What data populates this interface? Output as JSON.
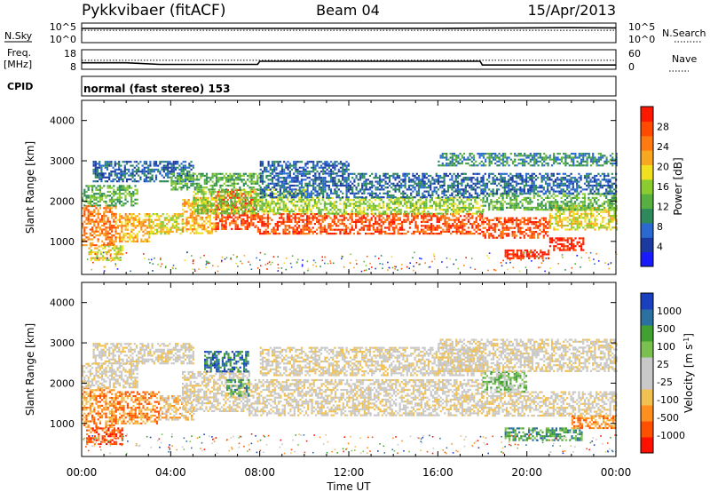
{
  "header": {
    "station": "Pykkvibaer (fitACF)",
    "beam": "Beam 04",
    "date": "15/Apr/2013"
  },
  "colors": {
    "power_scale": [
      "#1a1aff",
      "#1a3aa0",
      "#2a6ad0",
      "#2e8a5a",
      "#58b040",
      "#8acc30",
      "#f0e020",
      "#f8a820",
      "#ff7a10",
      "#ff4a00",
      "#ff1800"
    ],
    "velocity_scale": [
      "#ff1000",
      "#ff5000",
      "#ff9020",
      "#f0c050",
      "#c8c8c8",
      "#c8c8c8",
      "#7ac050",
      "#40a030",
      "#2a70a0",
      "#1a40c0"
    ]
  },
  "chart_data": [
    {
      "type": "line",
      "name": "noise-sky-panel",
      "ylabel": "N.Sky",
      "right_label": "N.Search",
      "ytick_labels": [
        "10^5",
        "10^0"
      ],
      "right_tick_labels": [
        "10^5",
        "10^0"
      ],
      "x": [
        0,
        2,
        4,
        6,
        8,
        10,
        12,
        14,
        16,
        18,
        20,
        22,
        24
      ],
      "series": [
        {
          "values": [
            10000,
            10000,
            10000,
            10000,
            10000,
            10000,
            10000,
            10000,
            10000,
            12000,
            14000,
            16000,
            14000
          ]
        },
        {
          "values": [
            3000,
            3000,
            3000,
            3000,
            3000,
            3000,
            3000,
            3000,
            3000,
            3000,
            3000,
            3000,
            3000
          ]
        }
      ]
    },
    {
      "type": "line",
      "name": "frequency-panel",
      "ylabel": "Freq. [MHz]",
      "right_label": "Nave",
      "ytick_labels": [
        "18",
        "8"
      ],
      "right_tick_labels": [
        "60",
        "0"
      ],
      "ylim": [
        8,
        18
      ],
      "x": [
        0,
        2,
        3.5,
        7.9,
        8,
        17.9,
        18,
        24
      ],
      "series": [
        {
          "values": [
            11.3,
            11.3,
            10.5,
            10.5,
            12.1,
            12.1,
            10.2,
            10.2
          ]
        },
        {
          "values": [
            12.6,
            12.6,
            12.6,
            12.6,
            12.6,
            12.6,
            12.6,
            12.6
          ]
        }
      ]
    },
    {
      "type": "table",
      "name": "cpid-panel",
      "label": "CPID",
      "mode_text": "normal (fast stereo) 153"
    },
    {
      "type": "heatmap",
      "name": "power-panel",
      "ylabel": "Slant Range [km]",
      "colorbar_label": "Power [dB]",
      "colorbar_ticks": [
        "28",
        "24",
        "20",
        "16",
        "12",
        "8",
        "4"
      ],
      "ytick_labels": [
        "4000",
        "3000",
        "2000",
        "1000"
      ],
      "ylim": [
        180,
        4500
      ],
      "xlim": [
        0,
        24
      ],
      "bands": [
        {
          "t0": 0,
          "t1": 1.5,
          "r0": 900,
          "r1": 1900,
          "level": 8
        },
        {
          "t0": 1.5,
          "t1": 3,
          "r0": 1000,
          "r1": 1700,
          "level": 7
        },
        {
          "t0": 3,
          "t1": 4.5,
          "r0": 1200,
          "r1": 1700,
          "level": 6
        },
        {
          "t0": 4.5,
          "t1": 6,
          "r0": 1200,
          "r1": 2100,
          "level": 7
        },
        {
          "t0": 6,
          "t1": 7.8,
          "r0": 1300,
          "r1": 2300,
          "level": 9
        },
        {
          "t0": 7.8,
          "t1": 10,
          "r0": 1200,
          "r1": 1700,
          "level": 9
        },
        {
          "t0": 10,
          "t1": 14,
          "r0": 1200,
          "r1": 1700,
          "level": 9
        },
        {
          "t0": 14,
          "t1": 18,
          "r0": 1200,
          "r1": 1700,
          "level": 9
        },
        {
          "t0": 18,
          "t1": 21,
          "r0": 1100,
          "r1": 1600,
          "level": 9
        },
        {
          "t0": 21,
          "t1": 24,
          "r0": 1300,
          "r1": 1900,
          "level": 6
        },
        {
          "t0": 0,
          "t1": 2.5,
          "r0": 1900,
          "r1": 2400,
          "level": 4
        },
        {
          "t0": 5,
          "t1": 10,
          "r0": 1700,
          "r1": 2300,
          "level": 5
        },
        {
          "t0": 10,
          "t1": 18,
          "r0": 1700,
          "r1": 2100,
          "level": 5
        },
        {
          "t0": 18,
          "t1": 24,
          "r0": 1800,
          "r1": 2200,
          "level": 4
        },
        {
          "t0": 0.5,
          "t1": 5,
          "r0": 2500,
          "r1": 3000,
          "level": 2
        },
        {
          "t0": 4,
          "t1": 8,
          "r0": 2300,
          "r1": 2700,
          "level": 4
        },
        {
          "t0": 8,
          "t1": 18,
          "r0": 2100,
          "r1": 2700,
          "level": 2
        },
        {
          "t0": 18,
          "t1": 24,
          "r0": 2200,
          "r1": 2700,
          "level": 2
        },
        {
          "t0": 19,
          "t1": 21,
          "r0": 600,
          "r1": 800,
          "level": 10
        },
        {
          "t0": 21,
          "t1": 22.5,
          "r0": 800,
          "r1": 1100,
          "level": 10
        },
        {
          "t0": 0.3,
          "t1": 1.8,
          "r0": 550,
          "r1": 900,
          "level": 6
        },
        {
          "t0": 8,
          "t1": 12,
          "r0": 2700,
          "r1": 3000,
          "level": 2
        },
        {
          "t0": 16,
          "t1": 24,
          "r0": 2900,
          "r1": 3200,
          "level": 3
        }
      ]
    },
    {
      "type": "heatmap",
      "name": "velocity-panel",
      "ylabel": "Slant Range [km]",
      "colorbar_label": "Velocity [m s-1]",
      "colorbar_ticks": [
        "1000",
        "500",
        "100",
        "25",
        "-25",
        "-100",
        "-500",
        "-1000"
      ],
      "ytick_labels": [
        "4000",
        "3000",
        "2000",
        "1000"
      ],
      "ylim": [
        180,
        4500
      ],
      "xlim": [
        0,
        24
      ],
      "xtick_labels": [
        "00:00",
        "04:00",
        "08:00",
        "12:00",
        "16:00",
        "20:00",
        "00:00"
      ],
      "xlabel": "Time UT",
      "bands": [
        {
          "t0": 0,
          "t1": 1.5,
          "r0": 900,
          "r1": 1900,
          "level": 2
        },
        {
          "t0": 0.2,
          "t1": 1.8,
          "r0": 500,
          "r1": 900,
          "level": 1
        },
        {
          "t0": 1.5,
          "t1": 3.5,
          "r0": 1000,
          "r1": 1800,
          "level": 2
        },
        {
          "t0": 3.5,
          "t1": 5,
          "r0": 1100,
          "r1": 1700,
          "level": 3
        },
        {
          "t0": 0,
          "t1": 2.5,
          "r0": 1900,
          "r1": 2500,
          "level": 4
        },
        {
          "t0": 0.5,
          "t1": 5,
          "r0": 2500,
          "r1": 3000,
          "level": 4
        },
        {
          "t0": 4.5,
          "t1": 7.5,
          "r0": 1300,
          "r1": 2300,
          "level": 4
        },
        {
          "t0": 5.5,
          "t1": 7.5,
          "r0": 2300,
          "r1": 2800,
          "level": 8
        },
        {
          "t0": 7.5,
          "t1": 18,
          "r0": 1200,
          "r1": 2100,
          "level": 4
        },
        {
          "t0": 8,
          "t1": 18,
          "r0": 2200,
          "r1": 2900,
          "level": 4
        },
        {
          "t0": 18,
          "t1": 24,
          "r0": 1200,
          "r1": 1800,
          "level": 4
        },
        {
          "t0": 18,
          "t1": 20,
          "r0": 1800,
          "r1": 2300,
          "level": 6
        },
        {
          "t0": 19,
          "t1": 22.5,
          "r0": 600,
          "r1": 900,
          "level": 7
        },
        {
          "t0": 22,
          "t1": 24,
          "r0": 900,
          "r1": 1200,
          "level": 2
        },
        {
          "t0": 16,
          "t1": 24,
          "r0": 2300,
          "r1": 3100,
          "level": 4
        },
        {
          "t0": 6.5,
          "t1": 7.5,
          "r0": 1700,
          "r1": 2100,
          "level": 7
        }
      ]
    }
  ]
}
